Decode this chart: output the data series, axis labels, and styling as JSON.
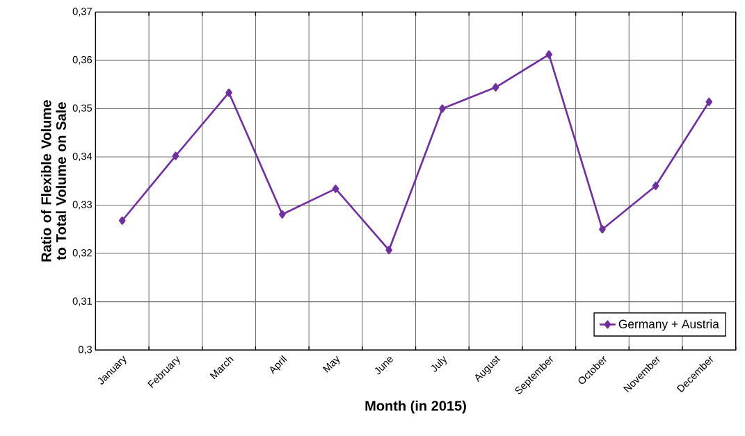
{
  "chart_data": {
    "type": "line",
    "xlabel": "Month (in 2015)",
    "ylabel": "Ratio of Flexible Volume to Total Volume on Sale",
    "categories": [
      "January",
      "February",
      "March",
      "April",
      "May",
      "June",
      "July",
      "August",
      "September",
      "October",
      "November",
      "December"
    ],
    "series": [
      {
        "name": "Germany + Austria",
        "color": "#7030a0",
        "values": [
          0.3268,
          0.3402,
          0.3533,
          0.3281,
          0.3334,
          0.3207,
          0.35,
          0.3544,
          0.3612,
          0.325,
          0.334,
          0.3514
        ]
      }
    ],
    "ylim": [
      0.3,
      0.37
    ],
    "yticks": [
      {
        "value": 0.3,
        "label": "0,3"
      },
      {
        "value": 0.31,
        "label": "0,31"
      },
      {
        "value": 0.32,
        "label": "0,32"
      },
      {
        "value": 0.33,
        "label": "0,33"
      },
      {
        "value": 0.34,
        "label": "0,34"
      },
      {
        "value": 0.35,
        "label": "0,35"
      },
      {
        "value": 0.36,
        "label": "0,36"
      },
      {
        "value": 0.37,
        "label": "0,37"
      }
    ],
    "grid": true,
    "legend": "bottom right",
    "marker": "diamond",
    "line_style": "solid"
  }
}
